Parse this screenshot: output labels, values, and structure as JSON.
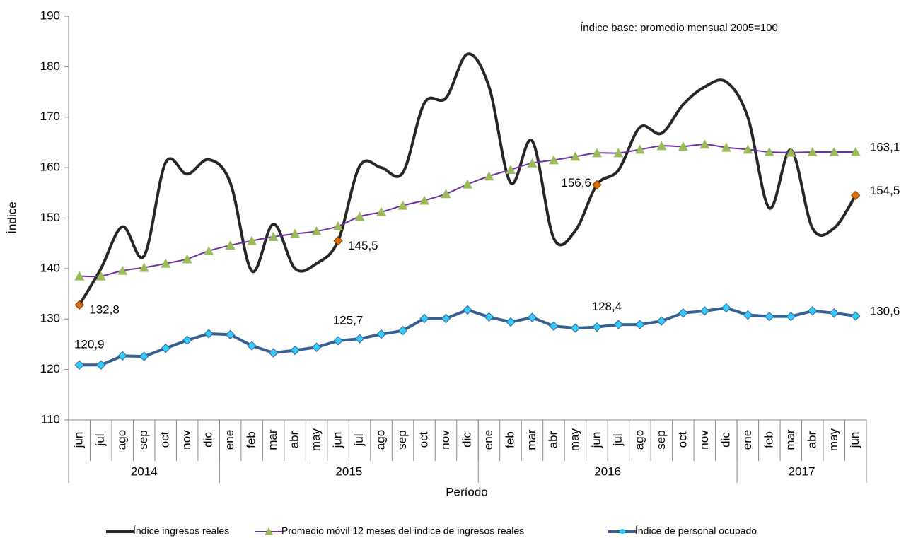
{
  "chart_data": {
    "type": "line",
    "annotation": "Índice base: promedio  mensual 2005=100",
    "y_label": "Índice",
    "x_label": "Período",
    "categories": [
      "jun",
      "jul",
      "ago",
      "sep",
      "oct",
      "nov",
      "dic",
      "ene",
      "feb",
      "mar",
      "abr",
      "may",
      "jun",
      "jul",
      "ago",
      "sep",
      "oct",
      "nov",
      "dic",
      "ene",
      "feb",
      "mar",
      "abr",
      "may",
      "jun",
      "jul",
      "ago",
      "sep",
      "oct",
      "nov",
      "dic",
      "ene",
      "feb",
      "mar",
      "abr",
      "may",
      "jun"
    ],
    "category_groups": [
      {
        "label": "2014",
        "size": 7
      },
      {
        "label": "2015",
        "size": 12
      },
      {
        "label": "2016",
        "size": 12
      },
      {
        "label": "2017",
        "size": 6
      }
    ],
    "ylim": [
      110,
      190
    ],
    "yticks": [
      110,
      120,
      130,
      140,
      150,
      160,
      170,
      180,
      190
    ],
    "series": [
      {
        "name": "Índice ingresos reales",
        "color": "#262626",
        "smooth": true,
        "marker": "none",
        "label_marker_color": "#e36c09",
        "values": [
          132.8,
          140,
          148.3,
          142.5,
          161,
          158.7,
          161.6,
          157,
          139.5,
          148.8,
          140,
          141,
          145.5,
          160.3,
          160,
          159,
          172.8,
          173.8,
          182.5,
          176,
          157,
          165.3,
          146,
          147.5,
          156.6,
          159.5,
          168,
          166.8,
          172.5,
          176,
          177,
          170,
          152,
          163.5,
          148,
          148,
          154.5
        ],
        "value_labels": [
          "132,8",
          null,
          null,
          null,
          null,
          null,
          null,
          null,
          null,
          null,
          null,
          null,
          "145,5",
          null,
          null,
          null,
          null,
          null,
          null,
          null,
          null,
          null,
          null,
          null,
          "156,6",
          null,
          null,
          null,
          null,
          null,
          null,
          null,
          null,
          null,
          null,
          null,
          "154,5"
        ]
      },
      {
        "name": "Promedio móvil 12 meses del índice de ingresos reales",
        "color": "#7030a0",
        "smooth": true,
        "marker": "triangle",
        "marker_color": "#9bbb59",
        "values": [
          138.5,
          138.5,
          139.6,
          140.2,
          141,
          141.9,
          143.5,
          144.6,
          145.5,
          146.3,
          146.9,
          147.4,
          148.4,
          150.3,
          151.2,
          152.5,
          153.5,
          154.8,
          156.7,
          158.3,
          159.6,
          160.9,
          161.5,
          162.2,
          162.9,
          162.9,
          163.6,
          164.3,
          164.2,
          164.6,
          164,
          163.6,
          163.1,
          163,
          163.1,
          163.1,
          163.1
        ],
        "value_labels": [
          null,
          null,
          null,
          null,
          null,
          null,
          null,
          null,
          null,
          null,
          null,
          null,
          null,
          null,
          null,
          null,
          null,
          null,
          null,
          null,
          null,
          null,
          null,
          null,
          null,
          null,
          null,
          null,
          null,
          null,
          null,
          null,
          null,
          null,
          null,
          null,
          "163,1"
        ]
      },
      {
        "name": "Índice de personal ocupado",
        "color": "#366092",
        "smooth": false,
        "marker": "diamond",
        "marker_color": "#33ccff",
        "values": [
          120.9,
          120.9,
          122.7,
          122.6,
          124.2,
          125.8,
          127.1,
          126.9,
          124.7,
          123.3,
          123.8,
          124.4,
          125.7,
          126.1,
          127,
          127.7,
          130.1,
          130.1,
          131.8,
          130.4,
          129.4,
          130.3,
          128.6,
          128.2,
          128.4,
          128.9,
          128.9,
          129.6,
          131.2,
          131.6,
          132.2,
          130.8,
          130.5,
          130.5,
          131.6,
          131.2,
          130.6
        ],
        "value_labels": [
          "120,9",
          null,
          null,
          null,
          null,
          null,
          null,
          null,
          null,
          null,
          null,
          null,
          "125,7",
          null,
          null,
          null,
          null,
          null,
          null,
          null,
          null,
          null,
          null,
          null,
          "128,4",
          null,
          null,
          null,
          null,
          null,
          null,
          null,
          null,
          null,
          null,
          null,
          "130,6"
        ]
      }
    ]
  }
}
